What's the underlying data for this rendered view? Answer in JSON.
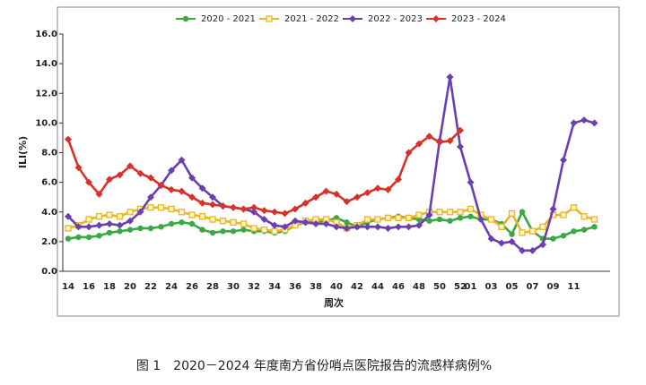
{
  "chart_data": {
    "type": "line",
    "caption": "图 1　2020－2024 年度南方省份哨点医院报告的流感样病例%",
    "x_label": "周次",
    "y_label": "ILI(%)",
    "categories": [
      "14",
      null,
      "16",
      null,
      "18",
      null,
      "20",
      null,
      "22",
      null,
      "24",
      null,
      "26",
      null,
      "28",
      null,
      "30",
      null,
      "32",
      null,
      "34",
      null,
      "36",
      null,
      "38",
      null,
      "40",
      null,
      "42",
      null,
      "44",
      null,
      "46",
      null,
      "48",
      null,
      "50",
      null,
      "52",
      "01",
      null,
      "03",
      null,
      "05",
      null,
      "07",
      null,
      "09",
      null,
      "11",
      null,
      null
    ],
    "ylim": [
      0,
      16
    ],
    "yticks": [
      {
        "value": 0,
        "label": "0.0"
      },
      {
        "value": 2,
        "label": "2.0"
      },
      {
        "value": 4,
        "label": "4.0"
      },
      {
        "value": 6,
        "label": "6.0"
      },
      {
        "value": 8,
        "label": "8.0"
      },
      {
        "value": 10,
        "label": "10.0"
      },
      {
        "value": 12,
        "label": "12.0"
      },
      {
        "value": 14,
        "label": "14.0"
      },
      {
        "value": 16,
        "label": "16.0"
      }
    ],
    "legend": "top",
    "series": [
      {
        "name": "2020 - 2021",
        "color": "#3aa845",
        "marker": "circle",
        "values": [
          2.2,
          2.3,
          2.3,
          2.4,
          2.6,
          2.7,
          2.8,
          2.9,
          2.9,
          3.0,
          3.2,
          3.3,
          3.2,
          2.8,
          2.6,
          2.7,
          2.7,
          2.8,
          2.7,
          2.7,
          2.6,
          2.7,
          3.1,
          3.3,
          3.3,
          3.4,
          3.6,
          3.3,
          3.0,
          3.3,
          3.5,
          3.6,
          3.7,
          3.6,
          3.5,
          3.4,
          3.5,
          3.4,
          3.6,
          3.7,
          3.5,
          3.5,
          3.2,
          2.5,
          4.0,
          2.7,
          2.2,
          2.2,
          2.4,
          2.7,
          2.8,
          3.0
        ]
      },
      {
        "name": "2021 - 2022",
        "color": "#e8b62a",
        "marker": "square",
        "values": [
          2.9,
          3.1,
          3.5,
          3.7,
          3.8,
          3.7,
          4.0,
          4.2,
          4.3,
          4.3,
          4.2,
          4.0,
          3.8,
          3.7,
          3.5,
          3.4,
          3.3,
          3.2,
          2.9,
          2.8,
          2.7,
          2.8,
          3.1,
          3.4,
          3.5,
          3.5,
          3.3,
          2.9,
          3.1,
          3.5,
          3.5,
          3.6,
          3.6,
          3.6,
          3.8,
          4.0,
          4.0,
          4.0,
          4.0,
          4.2,
          3.8,
          3.5,
          3.0,
          3.9,
          2.6,
          2.7,
          3.0,
          3.8,
          3.8,
          4.3,
          3.7,
          3.5
        ]
      },
      {
        "name": "2022 - 2023",
        "color": "#6a3fb0",
        "marker": "diamond",
        "values": [
          3.7,
          3.0,
          3.0,
          3.1,
          3.2,
          3.1,
          3.4,
          4.0,
          5.0,
          5.8,
          6.8,
          7.5,
          6.3,
          5.6,
          5.0,
          4.4,
          4.3,
          4.2,
          4.0,
          3.5,
          3.1,
          3.0,
          3.4,
          3.3,
          3.2,
          3.2,
          3.0,
          2.9,
          3.0,
          3.0,
          3.0,
          2.9,
          3.0,
          3.0,
          3.1,
          3.8,
          8.8,
          13.1,
          8.4,
          6.0,
          3.5,
          2.2,
          1.9,
          2.0,
          1.4,
          1.4,
          1.8,
          4.2,
          7.5,
          10.0,
          10.2,
          10.0
        ]
      },
      {
        "name": "2023 - 2024",
        "color": "#d8312a",
        "marker": "diamond",
        "values": [
          8.9,
          7.0,
          6.0,
          5.2,
          6.2,
          6.5,
          7.1,
          6.6,
          6.3,
          5.8,
          5.5,
          5.4,
          5.0,
          4.6,
          4.5,
          4.4,
          4.3,
          4.2,
          4.3,
          4.1,
          4.0,
          3.9,
          4.2,
          4.6,
          5.0,
          5.4,
          5.2,
          4.7,
          5.0,
          5.3,
          5.6,
          5.5,
          6.2,
          8.0,
          8.6,
          9.1,
          8.7,
          8.8,
          9.5,
          null,
          null,
          null,
          null,
          null,
          null,
          null,
          null,
          null,
          null,
          null,
          null,
          null
        ]
      }
    ]
  }
}
